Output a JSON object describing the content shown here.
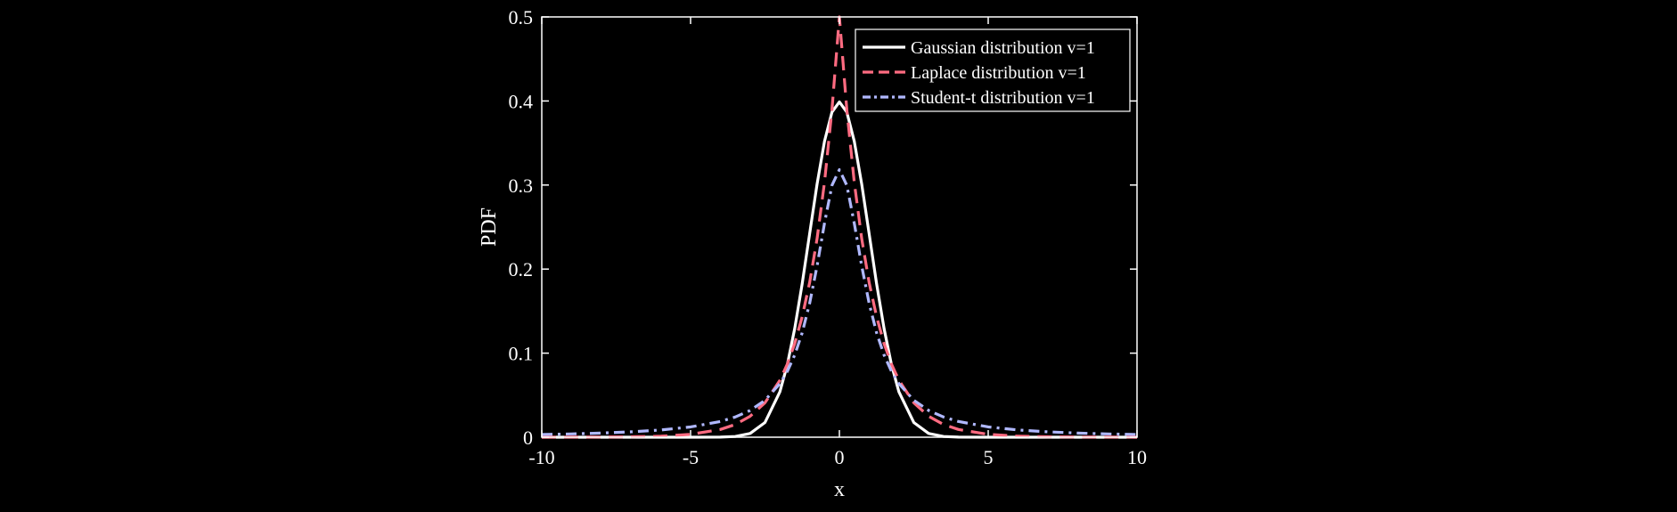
{
  "chart_data": {
    "type": "line",
    "title": "",
    "xlabel": "x",
    "ylabel": "PDF",
    "xlim": [
      -10,
      10
    ],
    "ylim": [
      0,
      0.5
    ],
    "xticks": [
      -10,
      -5,
      0,
      5,
      10
    ],
    "xtick_labels": [
      "-10",
      "-5",
      "0",
      "5",
      "10"
    ],
    "yticks": [
      0,
      0.1,
      0.2,
      0.3,
      0.4,
      0.5
    ],
    "ytick_labels": [
      "0",
      "0.1",
      "0.2",
      "0.3",
      "0.4",
      "0.5"
    ],
    "grid": false,
    "legend_position": "top-right",
    "background_color": "#000000",
    "axis_color": "#ffffff",
    "series": [
      {
        "name": "Gaussian distribution v=1",
        "color": "#ffffff",
        "dash": "solid",
        "x": [
          -10,
          -9,
          -8,
          -7,
          -6,
          -5,
          -4,
          -3.5,
          -3,
          -2.5,
          -2,
          -1.75,
          -1.5,
          -1.25,
          -1,
          -0.75,
          -0.5,
          -0.25,
          0,
          0.25,
          0.5,
          0.75,
          1,
          1.25,
          1.5,
          1.75,
          2,
          2.5,
          3,
          3.5,
          4,
          5,
          6,
          7,
          8,
          9,
          10
        ],
        "y": [
          0,
          0,
          0,
          0,
          0,
          1.5e-06,
          0.000134,
          0.000873,
          0.00443,
          0.0175,
          0.054,
          0.0863,
          0.1295,
          0.1826,
          0.242,
          0.3011,
          0.3521,
          0.3867,
          0.3989,
          0.3867,
          0.3521,
          0.3011,
          0.242,
          0.1826,
          0.1295,
          0.0863,
          0.054,
          0.0175,
          0.00443,
          0.000873,
          0.000134,
          1.5e-06,
          0,
          0,
          0,
          0,
          0
        ]
      },
      {
        "name": "Laplace distribution v=1",
        "color": "#ff6b81",
        "dash": "dashed",
        "x": [
          -10,
          -9,
          -8,
          -7,
          -6,
          -5,
          -4,
          -3.5,
          -3,
          -2.5,
          -2,
          -1.75,
          -1.5,
          -1.25,
          -1,
          -0.75,
          -0.5,
          -0.25,
          0,
          0.25,
          0.5,
          0.75,
          1,
          1.25,
          1.5,
          1.75,
          2,
          2.5,
          3,
          3.5,
          4,
          5,
          6,
          7,
          8,
          9,
          10
        ],
        "y": [
          3e-05,
          0.0001,
          0.0002,
          0.0005,
          0.0012,
          0.0034,
          0.0092,
          0.0151,
          0.0249,
          0.041,
          0.0677,
          0.0869,
          0.1116,
          0.1433,
          0.1839,
          0.2362,
          0.3033,
          0.3894,
          0.5,
          0.3894,
          0.3033,
          0.2362,
          0.1839,
          0.1433,
          0.1116,
          0.0869,
          0.0677,
          0.041,
          0.0249,
          0.0151,
          0.0092,
          0.0034,
          0.0012,
          0.0005,
          0.0002,
          0.0001,
          3e-05
        ]
      },
      {
        "name": "Student-t distribution v=1",
        "color": "#b0b8ff",
        "dash": "dash-dot",
        "x": [
          -10,
          -9,
          -8,
          -7,
          -6,
          -5,
          -4,
          -3.5,
          -3,
          -2.5,
          -2,
          -1.75,
          -1.5,
          -1.25,
          -1,
          -0.75,
          -0.5,
          -0.25,
          0,
          0.25,
          0.5,
          0.75,
          1,
          1.25,
          1.5,
          1.75,
          2,
          2.5,
          3,
          3.5,
          4,
          5,
          6,
          7,
          8,
          9,
          10
        ],
        "y": [
          0.0032,
          0.0039,
          0.0049,
          0.0064,
          0.0086,
          0.0122,
          0.0187,
          0.024,
          0.0318,
          0.0439,
          0.0637,
          0.0783,
          0.0979,
          0.1242,
          0.1592,
          0.2037,
          0.2546,
          0.2996,
          0.3183,
          0.2996,
          0.2546,
          0.2037,
          0.1592,
          0.1242,
          0.0979,
          0.0783,
          0.0637,
          0.0439,
          0.0318,
          0.024,
          0.0187,
          0.0122,
          0.0086,
          0.0064,
          0.0049,
          0.0039,
          0.0032
        ]
      }
    ]
  }
}
